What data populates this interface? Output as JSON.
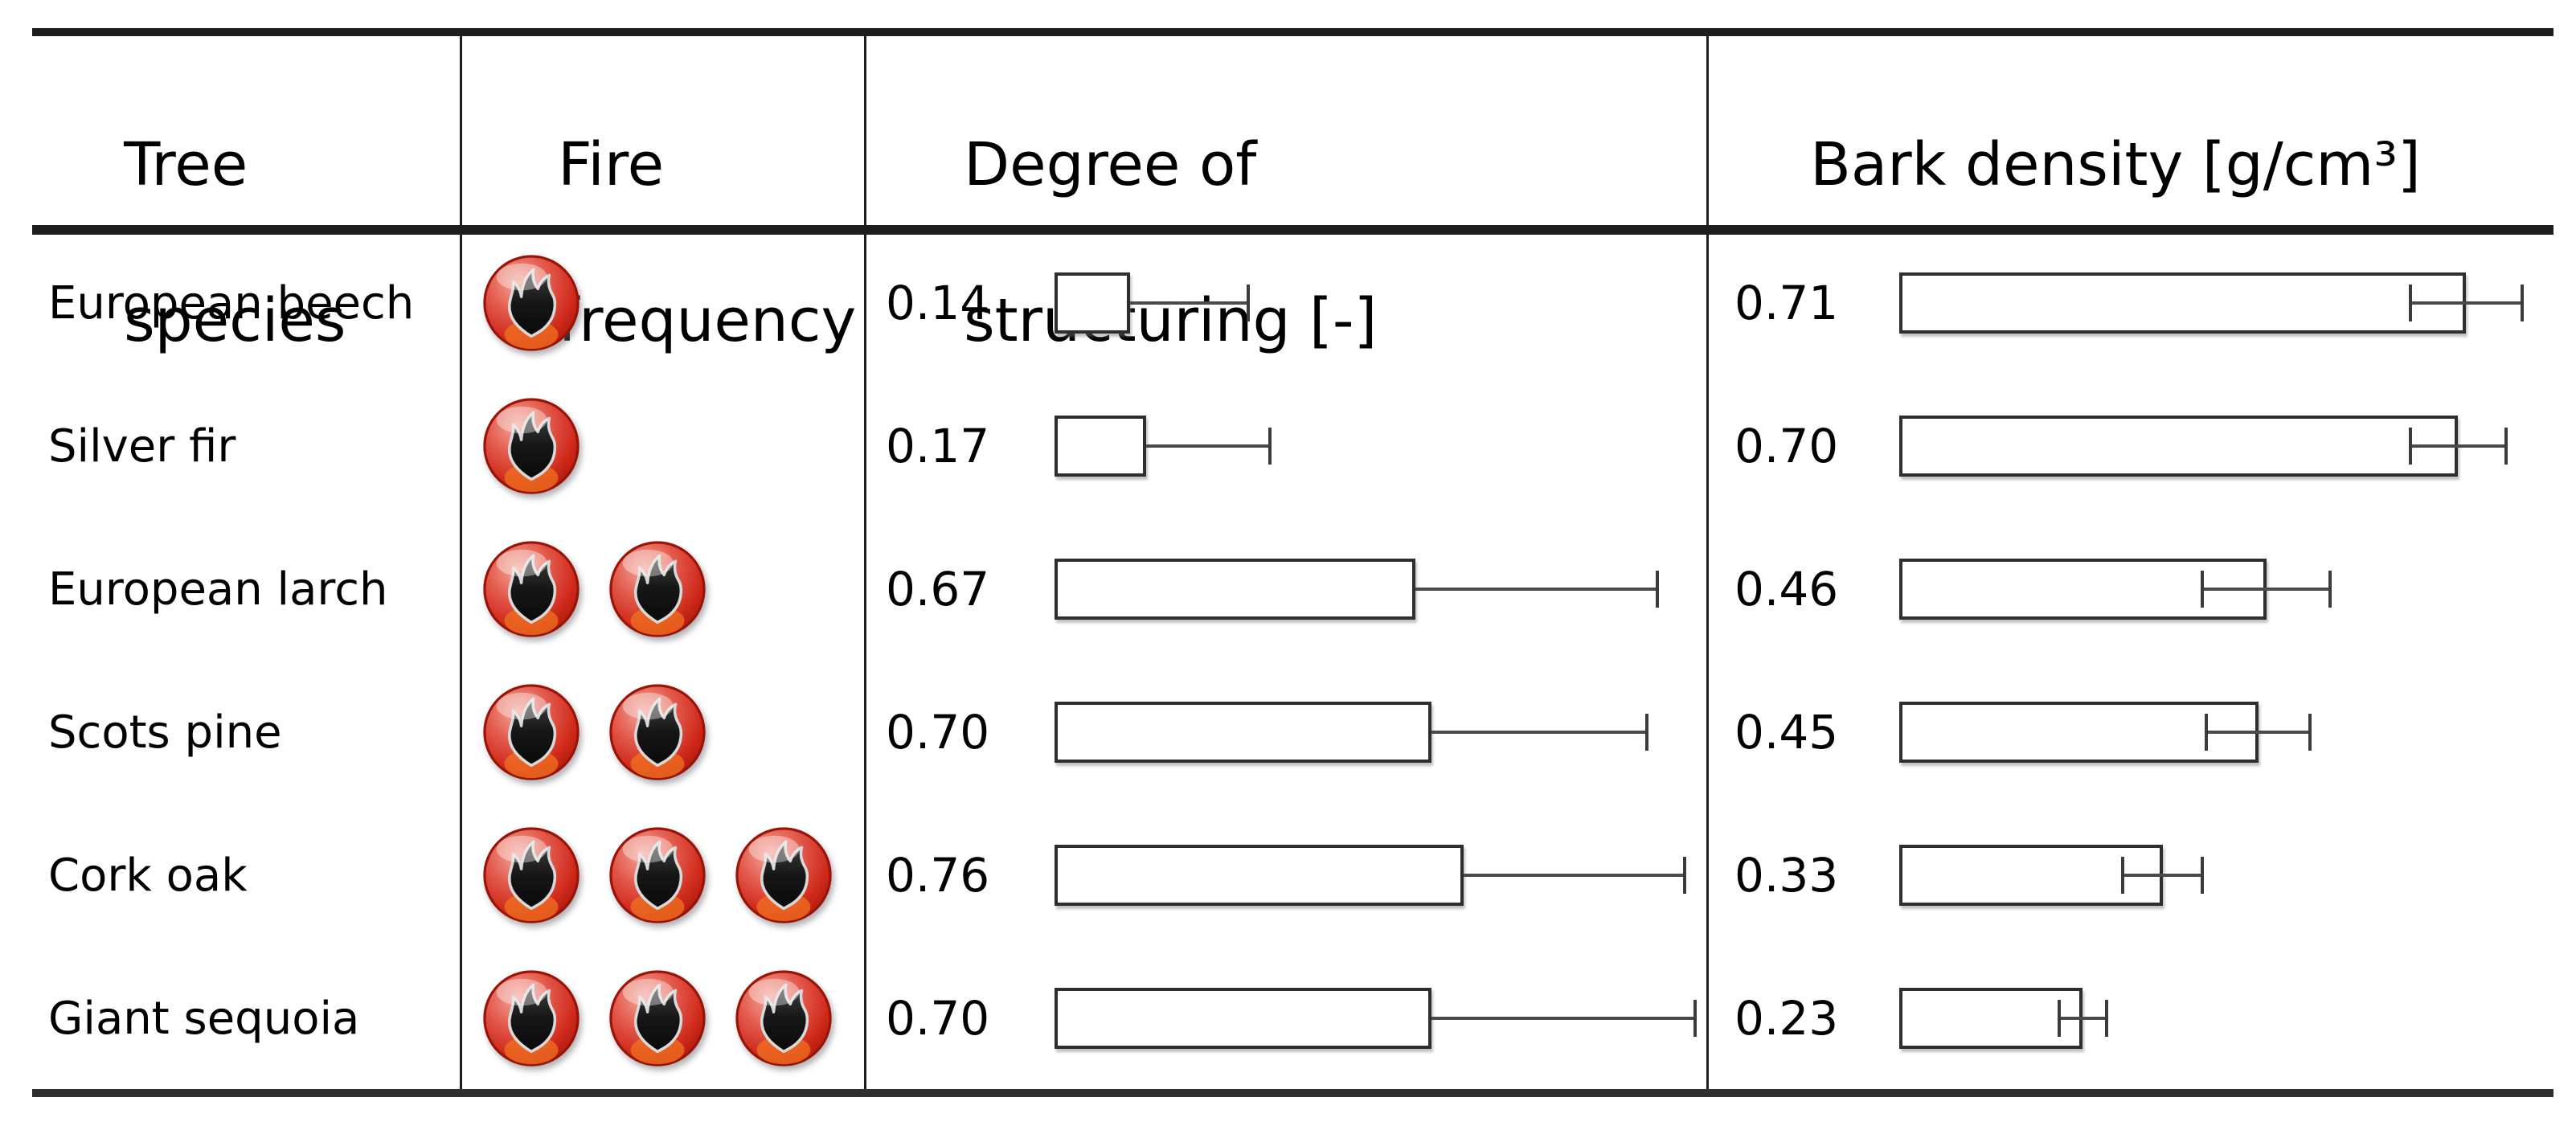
{
  "figure": {
    "type": "table-with-embedded-bars",
    "colors": {
      "rule": "#1d1d1d",
      "bar_border": "#2e2e2e",
      "errorbar": "#4a4a4a",
      "fire_red": "#cf2a1b",
      "flame_dark": "#161616",
      "background": "#ffffff"
    }
  },
  "table": {
    "columns": [
      {
        "label": "Tree species",
        "lines": [
          "Tree",
          "species"
        ]
      },
      {
        "label": "Fire frequency",
        "lines": [
          "Fire",
          "frequency"
        ]
      },
      {
        "label": "Degree of structuring [-]",
        "lines": [
          "Degree of",
          "structuring [-]"
        ]
      },
      {
        "label": "Bark density [g/cm³]",
        "lines": [
          "Bark density [g/cm³]"
        ]
      }
    ],
    "rows": [
      {
        "species": "European beech",
        "fire_frequency": 1,
        "structuring_label": "0.14",
        "structuring": 0.14,
        "structuring_whisker_max": 0.36,
        "bark_label": "0.71",
        "bark_density": 0.71,
        "bark_sd": 0.07
      },
      {
        "species": "Silver fir",
        "fire_frequency": 1,
        "structuring_label": "0.17",
        "structuring": 0.17,
        "structuring_whisker_max": 0.4,
        "bark_label": "0.70",
        "bark_density": 0.7,
        "bark_sd": 0.06
      },
      {
        "species": "European larch",
        "fire_frequency": 2,
        "structuring_label": "0.67",
        "structuring": 0.67,
        "structuring_whisker_max": 1.12,
        "bark_label": "0.46",
        "bark_density": 0.46,
        "bark_sd": 0.08
      },
      {
        "species": "Scots pine",
        "fire_frequency": 2,
        "structuring_label": "0.70",
        "structuring": 0.7,
        "structuring_whisker_max": 1.1,
        "bark_label": "0.45",
        "bark_density": 0.45,
        "bark_sd": 0.065
      },
      {
        "species": "Cork oak",
        "fire_frequency": 3,
        "structuring_label": "0.76",
        "structuring": 0.76,
        "structuring_whisker_max": 1.17,
        "bark_label": "0.33",
        "bark_density": 0.33,
        "bark_sd": 0.05
      },
      {
        "species": "Giant sequoia",
        "fire_frequency": 3,
        "structuring_label": "0.70",
        "structuring": 0.7,
        "structuring_whisker_max": 1.19,
        "bark_label": "0.23",
        "bark_density": 0.23,
        "bark_sd": 0.03
      }
    ]
  },
  "chart_data": {
    "type": "bar",
    "orientation": "horizontal",
    "categories": [
      "European beech",
      "Silver fir",
      "European larch",
      "Scots pine",
      "Cork oak",
      "Giant sequoia"
    ],
    "series": [
      {
        "name": "Fire frequency",
        "unit": "fire-icon count",
        "values": [
          1,
          1,
          2,
          2,
          3,
          3
        ]
      },
      {
        "name": "Degree of structuring [-]",
        "values": [
          0.14,
          0.17,
          0.67,
          0.7,
          0.76,
          0.7
        ],
        "upper_whisker": [
          0.36,
          0.4,
          1.12,
          1.1,
          1.17,
          1.19
        ],
        "whisker_style": "one-sided-plus"
      },
      {
        "name": "Bark density [g/cm³]",
        "values": [
          0.71,
          0.7,
          0.46,
          0.45,
          0.33,
          0.23
        ],
        "sd": [
          0.07,
          0.06,
          0.08,
          0.065,
          0.05,
          0.03
        ],
        "whisker_style": "two-sided"
      }
    ],
    "title": "",
    "xlabel": "",
    "ylabel": "",
    "xlim_structuring": [
      0,
      1.21
    ],
    "xlim_bark_density": [
      0,
      0.82
    ],
    "grid": false,
    "legend": false
  }
}
